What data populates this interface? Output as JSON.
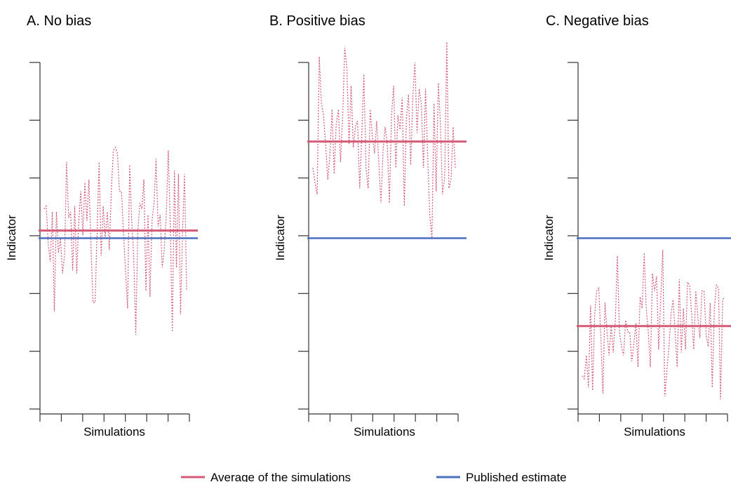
{
  "chart_data": [
    {
      "type": "line",
      "title": "A. No bias",
      "xlabel": "Simulations",
      "ylabel": "Indicator",
      "xlim": [
        0,
        70
      ],
      "ylim": [
        -3,
        3
      ],
      "x_ticks": 7,
      "y_ticks": 7,
      "series": [
        {
          "name": "Average of the simulations",
          "style": "solid",
          "color": "#d45a77",
          "values": [
            0.13,
            0.13
          ]
        },
        {
          "name": "Published estimate",
          "style": "solid",
          "color": "#4a6fbd",
          "values": [
            0,
            0
          ]
        },
        {
          "name": "",
          "style": "dotted",
          "color": "#d45a77",
          "values": [
            0.5,
            0.55,
            -0.1,
            -0.4,
            0.45,
            -1.25,
            0.45,
            -0.25,
            0.0,
            -0.6,
            -0.3,
            1.3,
            0.35,
            0.45,
            -0.55,
            0.55,
            -0.6,
            0.3,
            0.8,
            0.05,
            0.95,
            0.3,
            1.0,
            -0.15,
            -1.1,
            -1.1,
            0.1,
            1.3,
            -0.3,
            0.55,
            0.0,
            0.45,
            -0.2,
            0.8,
            1.5,
            1.55,
            1.45,
            0.8,
            0.8,
            0.05,
            -0.55,
            -1.2,
            1.25,
            0.3,
            -0.3,
            -1.65,
            0.1,
            0.6,
            0.5,
            1.0,
            -0.9,
            0.4,
            -1.0,
            0.3,
            0.6,
            1.35,
            0.2,
            0.4,
            -0.5,
            -0.2,
            0.4,
            1.5,
            0.2,
            -1.6,
            1.15,
            -0.5,
            1.1,
            -1.3,
            0.1,
            1.1,
            -0.9
          ]
        }
      ]
    },
    {
      "type": "line",
      "title": "B. Positive bias",
      "xlabel": "Simulations",
      "ylabel": "Indicator",
      "xlim": [
        0,
        70
      ],
      "ylim": [
        -3,
        3
      ],
      "x_ticks": 7,
      "y_ticks": 7,
      "series": [
        {
          "name": "Average of the simulations",
          "style": "solid",
          "color": "#d45a77",
          "values": [
            1.65,
            1.65
          ]
        },
        {
          "name": "Published estimate",
          "style": "solid",
          "color": "#4a6fbd",
          "values": [
            0,
            0
          ]
        },
        {
          "name": "",
          "style": "dotted",
          "color": "#d45a77",
          "values": [
            1.2,
            0.95,
            0.75,
            3.1,
            2.3,
            2.1,
            1.6,
            1.0,
            1.4,
            2.2,
            1.1,
            1.95,
            2.2,
            1.3,
            2.05,
            3.25,
            2.9,
            1.6,
            2.6,
            1.55,
            1.9,
            2.0,
            0.85,
            1.75,
            2.8,
            1.2,
            0.85,
            2.2,
            1.75,
            1.45,
            2.0,
            1.3,
            0.6,
            1.5,
            1.9,
            1.6,
            0.6,
            2.1,
            2.6,
            1.2,
            2.1,
            1.85,
            2.4,
            0.55,
            2.05,
            2.45,
            1.25,
            2.4,
            3.0,
            1.8,
            2.55,
            2.3,
            1.2,
            2.55,
            1.4,
            0.4,
            0.0,
            2.3,
            0.8,
            2.65,
            1.95,
            0.75,
            1.05,
            3.35,
            0.85,
            1.0,
            1.9,
            1.2
          ]
        }
      ]
    },
    {
      "type": "line",
      "title": "C. Negative bias",
      "xlabel": "Simulations",
      "ylabel": "Indicator",
      "xlim": [
        0,
        70
      ],
      "ylim": [
        -3,
        3
      ],
      "x_ticks": 7,
      "y_ticks": 7,
      "series": [
        {
          "name": "Average of the simulations",
          "style": "solid",
          "color": "#d45a77",
          "values": [
            -1.5,
            -1.5
          ]
        },
        {
          "name": "Published estimate",
          "style": "solid",
          "color": "#4a6fbd",
          "values": [
            0,
            0
          ]
        },
        {
          "name": "",
          "style": "dotted",
          "color": "#d45a77",
          "values": [
            -2.35,
            -2.4,
            -2.0,
            -2.55,
            -1.15,
            -2.6,
            -1.3,
            -0.9,
            -0.85,
            -1.7,
            -2.65,
            -1.1,
            -1.6,
            -2.0,
            -1.5,
            -1.95,
            -1.4,
            -0.3,
            -1.6,
            -1.85,
            -2.0,
            -1.4,
            -1.6,
            -1.6,
            -2.1,
            -1.8,
            -1.45,
            -2.2,
            -1.0,
            -1.2,
            -0.25,
            -1.2,
            -1.6,
            -2.2,
            -0.6,
            -0.9,
            -0.65,
            -1.9,
            -1.05,
            -0.2,
            -2.7,
            -2.25,
            -1.85,
            -1.3,
            -1.05,
            -1.6,
            -2.2,
            -0.7,
            -1.95,
            -1.2,
            -1.9,
            -0.75,
            -0.8,
            -1.3,
            -1.9,
            -0.9,
            -1.35,
            -1.7,
            -0.9,
            -0.9,
            -1.65,
            -1.85,
            -1.1,
            -2.55,
            -1.2,
            -0.8,
            -0.85,
            -2.75,
            -1.05,
            -1.0
          ]
        }
      ]
    }
  ],
  "legend": {
    "items": [
      {
        "label": "Average of the simulations",
        "color": "#d45a77"
      },
      {
        "label": "Published estimate",
        "color": "#4a6fbd"
      }
    ]
  }
}
